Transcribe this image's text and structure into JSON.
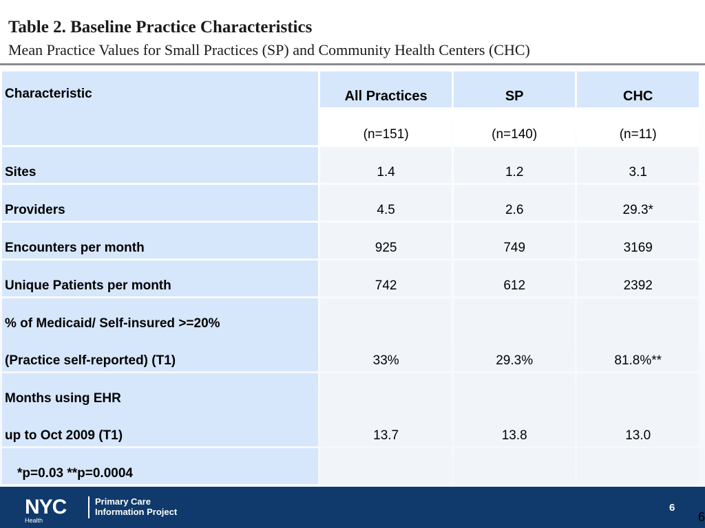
{
  "title": "Table 2. Baseline Practice Characteristics",
  "subtitle": "Mean Practice Values for Small Practices (SP) and Community Health Centers (CHC)",
  "table": {
    "header": {
      "characteristic": "Characteristic",
      "columns": [
        "All Practices",
        "SP",
        "CHC"
      ],
      "n": [
        "(n=151)",
        "(n=140)",
        "(n=11)"
      ]
    },
    "rows": [
      {
        "label": "Sites",
        "values": [
          "1.4",
          "1.2",
          "3.1"
        ]
      },
      {
        "label": "Providers",
        "values": [
          "4.5",
          "2.6",
          "29.3*"
        ]
      },
      {
        "label": "Encounters per month",
        "values": [
          "925",
          "749",
          "3169"
        ]
      },
      {
        "label": "Unique Patients per month",
        "values": [
          "742",
          "612",
          "2392"
        ]
      },
      {
        "label_line1": "% of Medicaid/ Self-insured >=20%",
        "label_line2": "(Practice self-reported) (T1)",
        "values": [
          "33%",
          "29.3%",
          "81.8%**"
        ]
      },
      {
        "label_line1": "Months using EHR",
        "label_line2": "up to Oct 2009 (T1)",
        "values": [
          "13.7",
          "13.8",
          "13.0"
        ]
      }
    ],
    "footnote": "*p=0.03  **p=0.0004"
  },
  "footer": {
    "logo_text": "NYC",
    "logo_subtext": "Health",
    "org_line1": "Primary Care",
    "org_line2": "Information Project",
    "page_number": "6"
  },
  "page_number_outside": "6"
}
